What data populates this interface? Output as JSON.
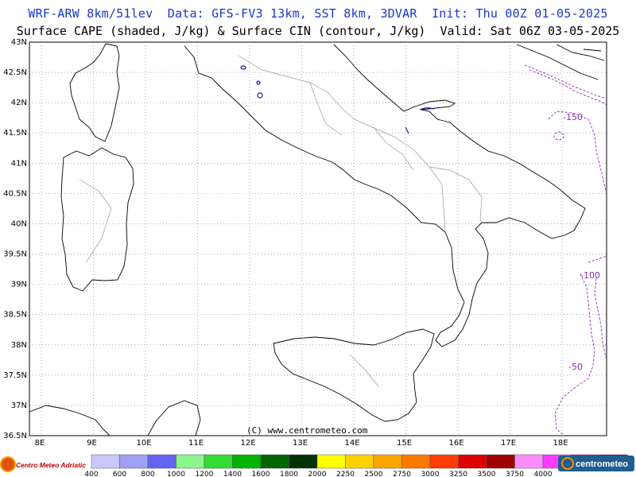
{
  "header": {
    "line1": "WRF-ARW 8km/51lev  Data: GFS-FV3 13km, SST 8km, 3DVAR  Init: Thu 00Z 01-05-2025",
    "line2": "Surface CAPE (shaded, J/kg) & Surface CIN (contour, J/kg)  Valid: Sat 06Z 03-05-2025"
  },
  "axes": {
    "lat_labels": [
      "43N",
      "42.5N",
      "42N",
      "41.5N",
      "41N",
      "40.5N",
      "40N",
      "39.5N",
      "39N",
      "38.5N",
      "38N",
      "37.5N",
      "37N",
      "36.5N"
    ],
    "lon_labels": [
      "8E",
      "9E",
      "10E",
      "11E",
      "12E",
      "13E",
      "14E",
      "15E",
      "16E",
      "17E",
      "18E"
    ]
  },
  "cin_contour_labels": [
    "-150",
    "-100",
    "-50"
  ],
  "credit": "(C) www.centrometeo.com",
  "logos": {
    "left": "Centro Meteo Adriatico",
    "right": "centrometeo"
  },
  "colorbar": {
    "labels": [
      "400",
      "600",
      "800",
      "1000",
      "1200",
      "1400",
      "1600",
      "1800",
      "2000",
      "2250",
      "2500",
      "2750",
      "3000",
      "3250",
      "3500",
      "3750",
      "4000"
    ],
    "colors": [
      "#c8c8ff",
      "#a0a0f5",
      "#6464f0",
      "#8cf58c",
      "#32dc32",
      "#00b400",
      "#006400",
      "#003200",
      "#ffff00",
      "#ffd200",
      "#ffa500",
      "#ff7800",
      "#ff3c00",
      "#dc0000",
      "#a00000",
      "#ff8cff",
      "#ff3cff",
      "#c800c8",
      "#8c008c"
    ]
  }
}
